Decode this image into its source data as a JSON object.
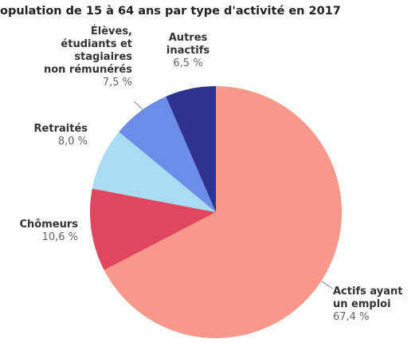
{
  "chart_data": {
    "type": "pie",
    "title": "opulation de 15 à 64 ans par type d'activité en 2017",
    "categories": [
      "Actifs ayant\nun emploi",
      "Chômeurs",
      "Retraités",
      "Élèves,\nétudiants et\nstagiaires\nnon rémunérés",
      "Autres\ninactifs"
    ],
    "values": [
      67.4,
      10.6,
      8.0,
      7.5,
      6.5
    ],
    "value_labels": [
      "67,4 %",
      "10,6 %",
      "8,0 %",
      "7,5 %",
      "6,5 %"
    ],
    "colors": [
      "#f7988b",
      "#e0465f",
      "#a8dcf0",
      "#6b8ce9",
      "#2f3390"
    ]
  }
}
